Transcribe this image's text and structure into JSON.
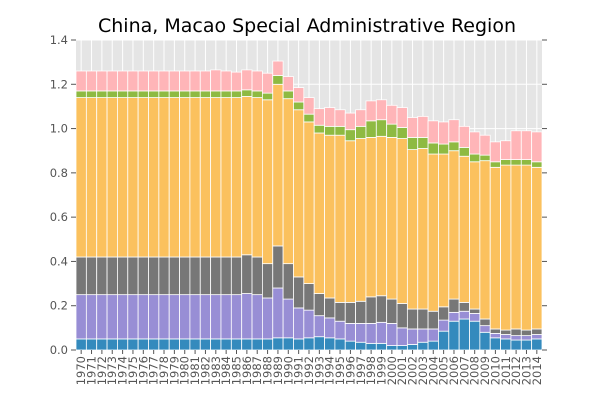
{
  "chart_data": {
    "type": "bar",
    "stacked": true,
    "title": "China, Macao Special Administrative Region",
    "xlabel": "",
    "ylabel": "",
    "ylim": [
      0,
      1.4
    ],
    "yticks": [
      "0.0",
      "0.2",
      "0.4",
      "0.6",
      "0.8",
      "1.0",
      "1.2",
      "1.4"
    ],
    "grid": true,
    "background": "#e5e5e5",
    "categories": [
      "1970",
      "1971",
      "1972",
      "1973",
      "1974",
      "1975",
      "1976",
      "1977",
      "1978",
      "1979",
      "1980",
      "1981",
      "1982",
      "1983",
      "1984",
      "1985",
      "1986",
      "1987",
      "1988",
      "1989",
      "1990",
      "1991",
      "1992",
      "1993",
      "1994",
      "1995",
      "1996",
      "1997",
      "1998",
      "1999",
      "2000",
      "2001",
      "2002",
      "2003",
      "2004",
      "2005",
      "2006",
      "2007",
      "2008",
      "2009",
      "2010",
      "2011",
      "2012",
      "2013",
      "2014"
    ],
    "series": [
      {
        "color": "#348abd",
        "values": [
          0.05,
          0.05,
          0.05,
          0.05,
          0.05,
          0.05,
          0.05,
          0.05,
          0.05,
          0.05,
          0.05,
          0.05,
          0.05,
          0.05,
          0.05,
          0.05,
          0.05,
          0.05,
          0.05,
          0.055,
          0.055,
          0.05,
          0.055,
          0.06,
          0.055,
          0.05,
          0.04,
          0.035,
          0.03,
          0.03,
          0.02,
          0.02,
          0.025,
          0.035,
          0.04,
          0.085,
          0.13,
          0.14,
          0.13,
          0.08,
          0.055,
          0.05,
          0.045,
          0.045,
          0.05
        ]
      },
      {
        "color": "#988ed5",
        "values": [
          0.2,
          0.2,
          0.2,
          0.2,
          0.2,
          0.2,
          0.2,
          0.2,
          0.2,
          0.2,
          0.2,
          0.2,
          0.2,
          0.2,
          0.2,
          0.2,
          0.205,
          0.2,
          0.185,
          0.225,
          0.175,
          0.14,
          0.125,
          0.095,
          0.09,
          0.08,
          0.08,
          0.085,
          0.09,
          0.095,
          0.1,
          0.08,
          0.07,
          0.06,
          0.055,
          0.05,
          0.04,
          0.035,
          0.035,
          0.03,
          0.02,
          0.02,
          0.02,
          0.02,
          0.02
        ]
      },
      {
        "color": "#777777",
        "values": [
          0.17,
          0.17,
          0.17,
          0.17,
          0.17,
          0.17,
          0.17,
          0.17,
          0.17,
          0.17,
          0.17,
          0.17,
          0.17,
          0.17,
          0.17,
          0.17,
          0.175,
          0.17,
          0.155,
          0.19,
          0.16,
          0.14,
          0.12,
          0.1,
          0.09,
          0.085,
          0.095,
          0.1,
          0.12,
          0.12,
          0.11,
          0.11,
          0.09,
          0.09,
          0.08,
          0.06,
          0.06,
          0.04,
          0.02,
          0.03,
          0.02,
          0.02,
          0.03,
          0.025,
          0.025
        ]
      },
      {
        "color": "#fbc15e",
        "values": [
          0.72,
          0.72,
          0.72,
          0.72,
          0.72,
          0.72,
          0.72,
          0.72,
          0.72,
          0.72,
          0.72,
          0.72,
          0.72,
          0.72,
          0.72,
          0.72,
          0.715,
          0.72,
          0.74,
          0.73,
          0.745,
          0.755,
          0.73,
          0.725,
          0.735,
          0.755,
          0.73,
          0.735,
          0.72,
          0.72,
          0.73,
          0.745,
          0.72,
          0.725,
          0.71,
          0.69,
          0.67,
          0.66,
          0.665,
          0.715,
          0.73,
          0.745,
          0.74,
          0.745,
          0.73
        ]
      },
      {
        "color": "#8eba42",
        "values": [
          0.03,
          0.03,
          0.03,
          0.03,
          0.03,
          0.03,
          0.03,
          0.03,
          0.03,
          0.03,
          0.03,
          0.03,
          0.03,
          0.03,
          0.03,
          0.03,
          0.03,
          0.03,
          0.03,
          0.04,
          0.035,
          0.035,
          0.035,
          0.035,
          0.04,
          0.04,
          0.05,
          0.055,
          0.075,
          0.075,
          0.06,
          0.05,
          0.055,
          0.05,
          0.05,
          0.045,
          0.04,
          0.04,
          0.035,
          0.025,
          0.025,
          0.025,
          0.025,
          0.025,
          0.025
        ]
      },
      {
        "color": "#ffb5b8",
        "values": [
          0.09,
          0.09,
          0.09,
          0.09,
          0.09,
          0.09,
          0.09,
          0.09,
          0.09,
          0.09,
          0.09,
          0.09,
          0.09,
          0.095,
          0.09,
          0.085,
          0.09,
          0.09,
          0.09,
          0.065,
          0.065,
          0.065,
          0.075,
          0.075,
          0.085,
          0.075,
          0.075,
          0.075,
          0.09,
          0.09,
          0.085,
          0.09,
          0.09,
          0.095,
          0.1,
          0.1,
          0.1,
          0.095,
          0.1,
          0.09,
          0.09,
          0.085,
          0.13,
          0.13,
          0.135
        ]
      }
    ]
  }
}
